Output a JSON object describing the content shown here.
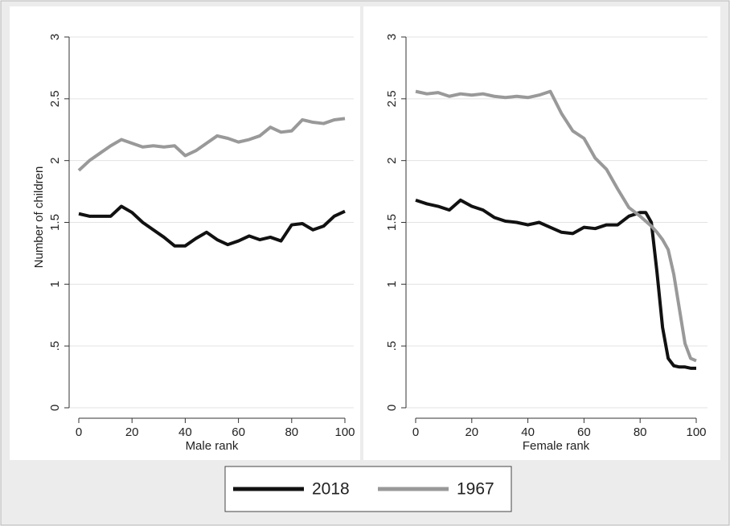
{
  "chart_data": [
    {
      "type": "line",
      "xlabel": "Male rank",
      "ylabel": "Number of children",
      "x": [
        0,
        4,
        8,
        12,
        16,
        20,
        24,
        28,
        32,
        36,
        40,
        44,
        48,
        52,
        56,
        60,
        64,
        68,
        72,
        76,
        80,
        84,
        88,
        92,
        96,
        100
      ],
      "series": [
        {
          "name": "2018",
          "color": "#111111",
          "values": [
            1.57,
            1.55,
            1.55,
            1.55,
            1.63,
            1.58,
            1.5,
            1.44,
            1.38,
            1.31,
            1.31,
            1.37,
            1.42,
            1.36,
            1.32,
            1.35,
            1.39,
            1.36,
            1.38,
            1.35,
            1.48,
            1.49,
            1.44,
            1.47,
            1.55,
            1.59
          ]
        },
        {
          "name": "1967",
          "color": "#999999",
          "values": [
            1.92,
            2.0,
            2.06,
            2.12,
            2.17,
            2.14,
            2.11,
            2.12,
            2.11,
            2.12,
            2.04,
            2.08,
            2.14,
            2.2,
            2.18,
            2.15,
            2.17,
            2.2,
            2.27,
            2.23,
            2.24,
            2.33,
            2.31,
            2.3,
            2.33,
            2.34
          ]
        }
      ],
      "xlim": [
        0,
        100
      ],
      "xticks": [
        0,
        20,
        40,
        60,
        80,
        100
      ],
      "ylim": [
        0,
        3
      ],
      "yticks": [
        0,
        {
          "value": 0.5,
          "label": ".5"
        },
        1,
        1.5,
        2,
        2.5,
        3
      ],
      "grid": true
    },
    {
      "type": "line",
      "xlabel": "Female rank",
      "x": [
        0,
        4,
        8,
        12,
        16,
        20,
        24,
        28,
        32,
        36,
        40,
        44,
        48,
        52,
        56,
        60,
        64,
        68,
        72,
        76,
        80,
        82,
        84,
        86,
        88,
        90,
        92,
        94,
        96,
        98,
        100
      ],
      "series": [
        {
          "name": "2018",
          "color": "#111111",
          "values": [
            1.68,
            1.65,
            1.63,
            1.6,
            1.68,
            1.63,
            1.6,
            1.54,
            1.51,
            1.5,
            1.48,
            1.5,
            1.46,
            1.42,
            1.41,
            1.46,
            1.45,
            1.48,
            1.48,
            1.55,
            1.58,
            1.58,
            1.5,
            1.1,
            0.65,
            0.4,
            0.34,
            0.33,
            0.33,
            0.32,
            0.32
          ]
        },
        {
          "name": "1967",
          "color": "#999999",
          "values": [
            2.56,
            2.54,
            2.55,
            2.52,
            2.54,
            2.53,
            2.54,
            2.52,
            2.51,
            2.52,
            2.51,
            2.53,
            2.56,
            2.38,
            2.24,
            2.18,
            2.02,
            1.93,
            1.77,
            1.62,
            1.55,
            1.51,
            1.47,
            1.42,
            1.36,
            1.28,
            1.08,
            0.8,
            0.52,
            0.4,
            0.38
          ]
        }
      ],
      "xlim": [
        0,
        100
      ],
      "xticks": [
        0,
        20,
        40,
        60,
        80,
        100
      ],
      "ylim": [
        0,
        3
      ],
      "yticks": [
        0,
        {
          "value": 0.5,
          "label": ".5"
        },
        1,
        1.5,
        2,
        2.5,
        3
      ],
      "grid": true
    }
  ]
}
